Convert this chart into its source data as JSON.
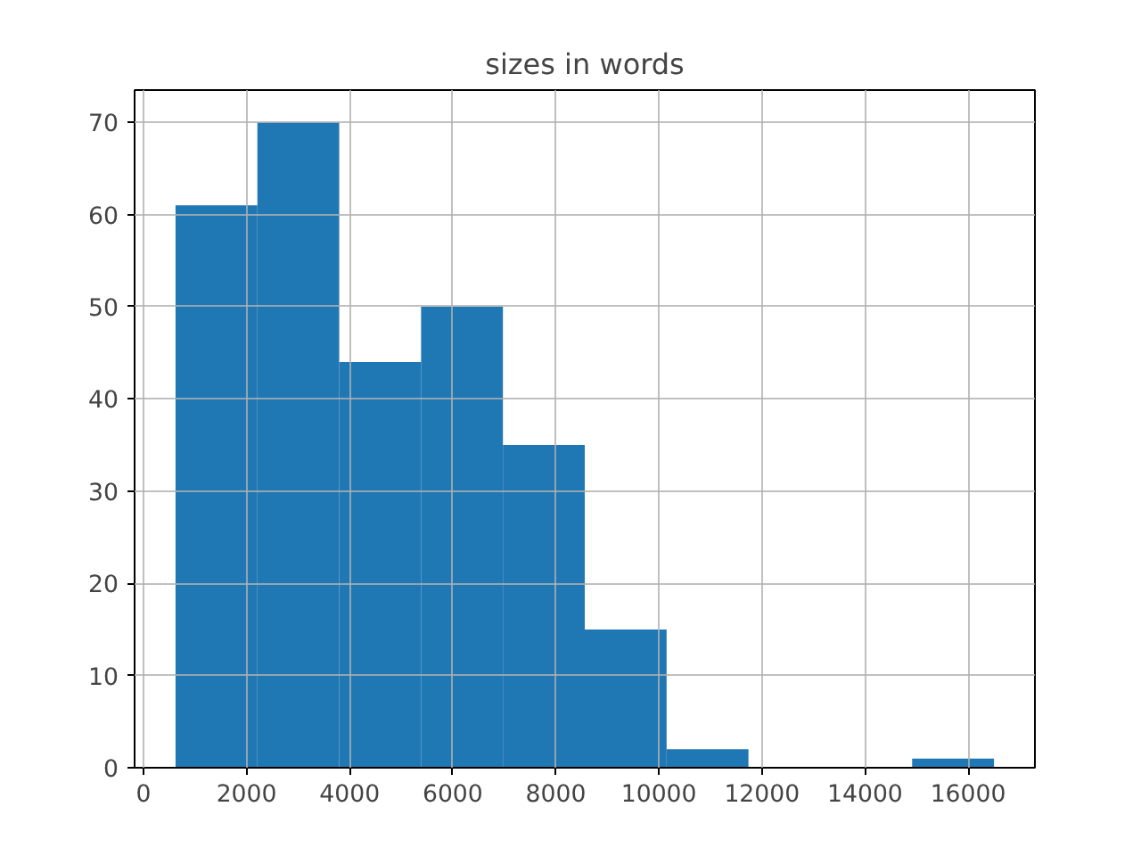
{
  "chart_data": {
    "type": "histogram",
    "title": "sizes in words",
    "bins": [
      622,
      2210,
      3798,
      5386,
      6974,
      8562,
      10150,
      11738,
      13326,
      14914,
      16502
    ],
    "values": [
      61,
      70,
      44,
      50,
      35,
      15,
      2,
      0,
      0,
      1
    ],
    "color": "#1f77b4",
    "xlim": [
      -172,
      17296
    ],
    "ylim": [
      0,
      73.5
    ],
    "xticks": [
      0,
      2000,
      4000,
      6000,
      8000,
      10000,
      12000,
      14000,
      16000
    ],
    "yticks": [
      0,
      10,
      20,
      30,
      40,
      50,
      60,
      70
    ],
    "grid": true
  }
}
